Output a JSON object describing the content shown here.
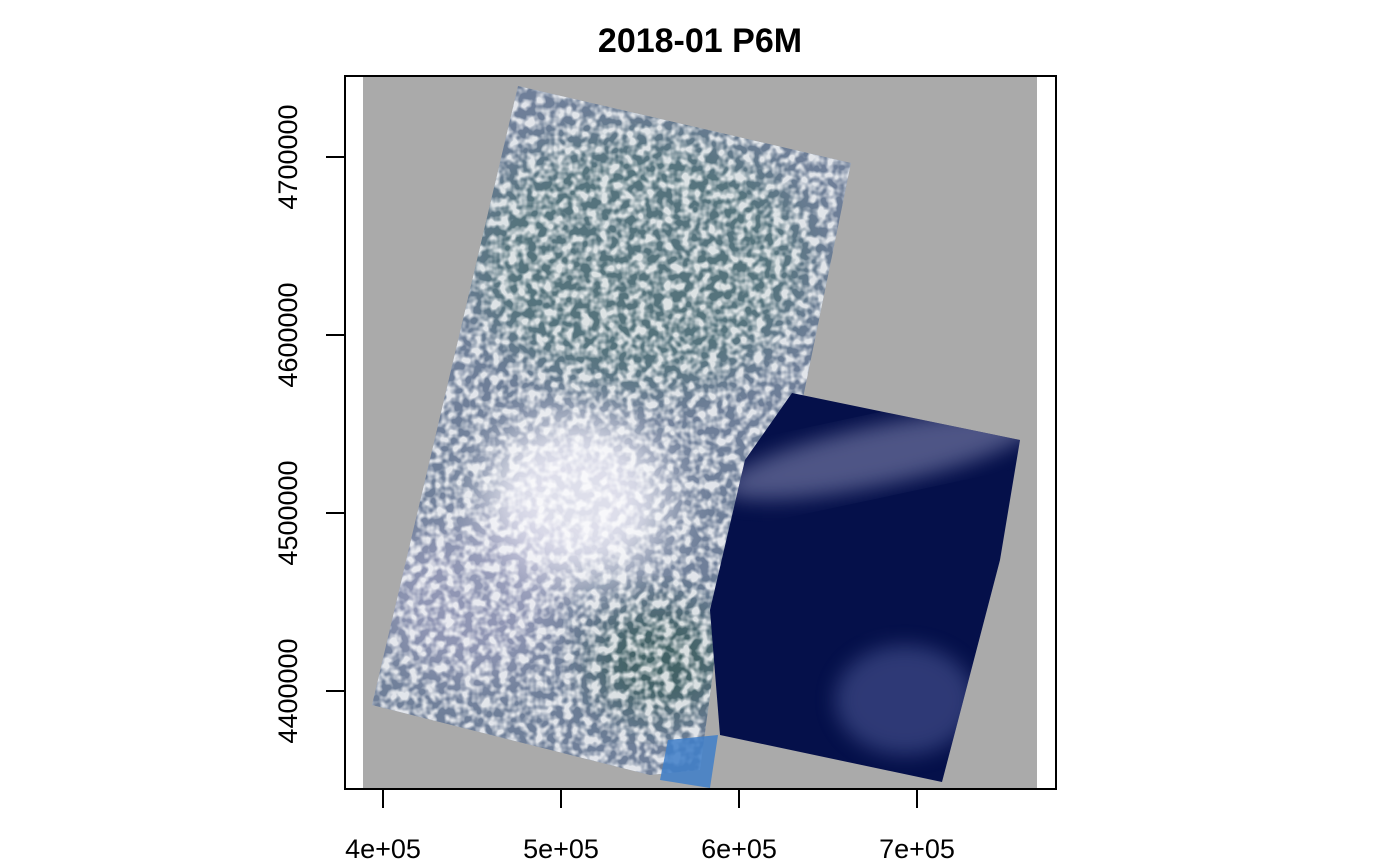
{
  "title": "2018-01 P6M",
  "map": {
    "type": "raster-rgb-composite",
    "background_color": "#aaaaaa",
    "frame_color": "#000000",
    "x_axis": {
      "ticks": [
        400000,
        500000,
        600000,
        700000
      ],
      "tick_labels": [
        "4e+05",
        "5e+05",
        "6e+05",
        "7e+05"
      ]
    },
    "y_axis": {
      "ticks": [
        4400000,
        4500000,
        4600000,
        4700000
      ],
      "tick_labels": [
        "4400000",
        "4500000",
        "4600000",
        "4700000"
      ]
    },
    "colors": {
      "land_base": "#6f7f99",
      "land_green": "#3f6b66",
      "cloud_white": "#f2f0fa",
      "cloud_lavender": "#b9b4d6",
      "water_dark": "#05104a",
      "water_light_blue": "#3f7fc9"
    }
  }
}
